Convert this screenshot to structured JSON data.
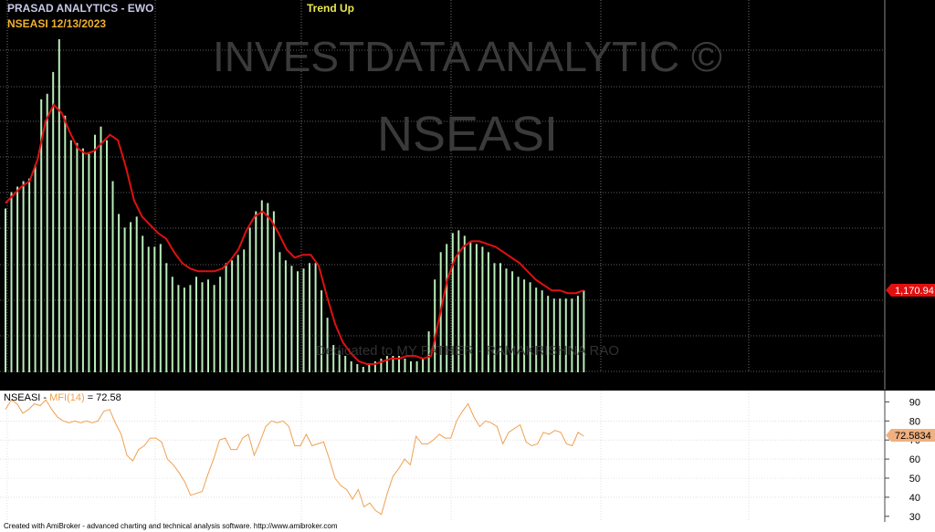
{
  "header": {
    "title": "PRASAD ANALYTICS - EWO",
    "symbol_date": "NSEASI  12/13/2023",
    "trend": "Trend Up"
  },
  "watermark": {
    "line1": "INVESTDATA ANALYTIC ©",
    "line2": "NSEASI",
    "dedication": "Dedicated to MY FATHER - RAMAKRISHNA RAO"
  },
  "price_label": "1,170.94",
  "indicator": {
    "symbol": "NSEASI",
    "name": "MFI(14)",
    "eq": "= 72.58",
    "last_label": "72.5834",
    "ticks": [
      "90",
      "80",
      "70",
      "60",
      "50",
      "40",
      "30"
    ]
  },
  "footer": "Created with AmiBroker - advanced charting and technical analysis software. http://www.amibroker.com",
  "colors": {
    "background": "#000000",
    "bars": "#b8ecb8",
    "ma_line": "#e01010",
    "mfi_line": "#f0a050",
    "title": "#c8c8e8",
    "symbol": "#f0b030",
    "trend": "#e8e850",
    "price_label_bg": "#e01010"
  },
  "chart_data": [
    {
      "type": "bar",
      "title": "NSEASI",
      "series": [
        {
          "values": [
            1160,
            1166,
            1168,
            1170,
            1171,
            1176,
            1200,
            1202,
            1210,
            1222,
            1194,
            1185,
            1184,
            1182,
            1180,
            1187,
            1190,
            1185,
            1170,
            1158,
            1153,
            1155,
            1157,
            1150,
            1146,
            1146,
            1147,
            1140,
            1135,
            1132,
            1131,
            1132,
            1135,
            1133,
            1134,
            1132,
            1135,
            1140,
            1141,
            1143,
            1145,
            1153,
            1159,
            1163,
            1162,
            1159,
            1144,
            1141,
            1139,
            1137,
            1138,
            1140,
            1140,
            1130,
            1120,
            1110,
            1108,
            1106,
            1104,
            1103,
            1102,
            1103,
            1104,
            1105,
            1106,
            1106,
            1106,
            1105,
            1104,
            1104,
            1105,
            1115,
            1134,
            1144,
            1147,
            1151,
            1152,
            1150,
            1148,
            1147,
            1146,
            1144,
            1140,
            1140,
            1138,
            1137,
            1135,
            1134,
            1133,
            1131,
            1130,
            1128,
            1127,
            1127,
            1127,
            1127,
            1128,
            1130
          ]
        },
        {
          "values": [
            1162,
            1165,
            1168,
            1170,
            1178,
            1192,
            1198,
            1195,
            1188,
            1182,
            1180,
            1181,
            1184,
            1187,
            1185,
            1175,
            1163,
            1157,
            1154,
            1151,
            1149,
            1144,
            1140,
            1138,
            1137,
            1137,
            1137,
            1138,
            1141,
            1145,
            1152,
            1157,
            1159,
            1156,
            1151,
            1145,
            1142,
            1143,
            1143,
            1139,
            1128,
            1118,
            1111,
            1107,
            1104,
            1103,
            1103,
            1104,
            1105,
            1105,
            1106,
            1106,
            1105,
            1106,
            1120,
            1134,
            1142,
            1146,
            1148,
            1148,
            1147,
            1146,
            1144,
            1142,
            1140,
            1137,
            1134,
            1132,
            1130,
            1130,
            1129,
            1129,
            1130
          ]
        }
      ]
    },
    {
      "type": "line",
      "title": "NSEASI - MFI(14)",
      "ylim": [
        28,
        94
      ],
      "series": [
        {
          "name": "MFI(14)",
          "values": [
            86,
            91,
            89,
            84,
            86,
            89,
            88,
            91,
            86,
            82,
            80,
            79,
            80,
            79,
            80,
            79,
            80,
            85,
            86,
            79,
            73,
            62,
            59,
            65,
            67,
            71,
            71,
            69,
            60,
            57,
            53,
            48,
            41,
            42,
            43,
            52,
            60,
            70,
            71,
            65,
            65,
            71,
            73,
            62,
            69,
            77,
            80,
            79,
            80,
            77,
            67,
            67,
            73,
            67,
            68,
            69,
            60,
            50,
            46,
            44,
            39,
            44,
            35,
            37,
            33,
            31,
            42,
            51,
            55,
            60,
            57,
            72,
            68,
            68,
            70,
            73,
            71,
            71,
            80,
            85,
            89,
            82,
            77,
            80,
            79,
            77,
            68,
            74,
            76,
            78,
            69,
            67,
            68,
            74,
            73,
            75,
            74,
            68,
            67,
            74,
            72
          ]
        }
      ]
    }
  ]
}
